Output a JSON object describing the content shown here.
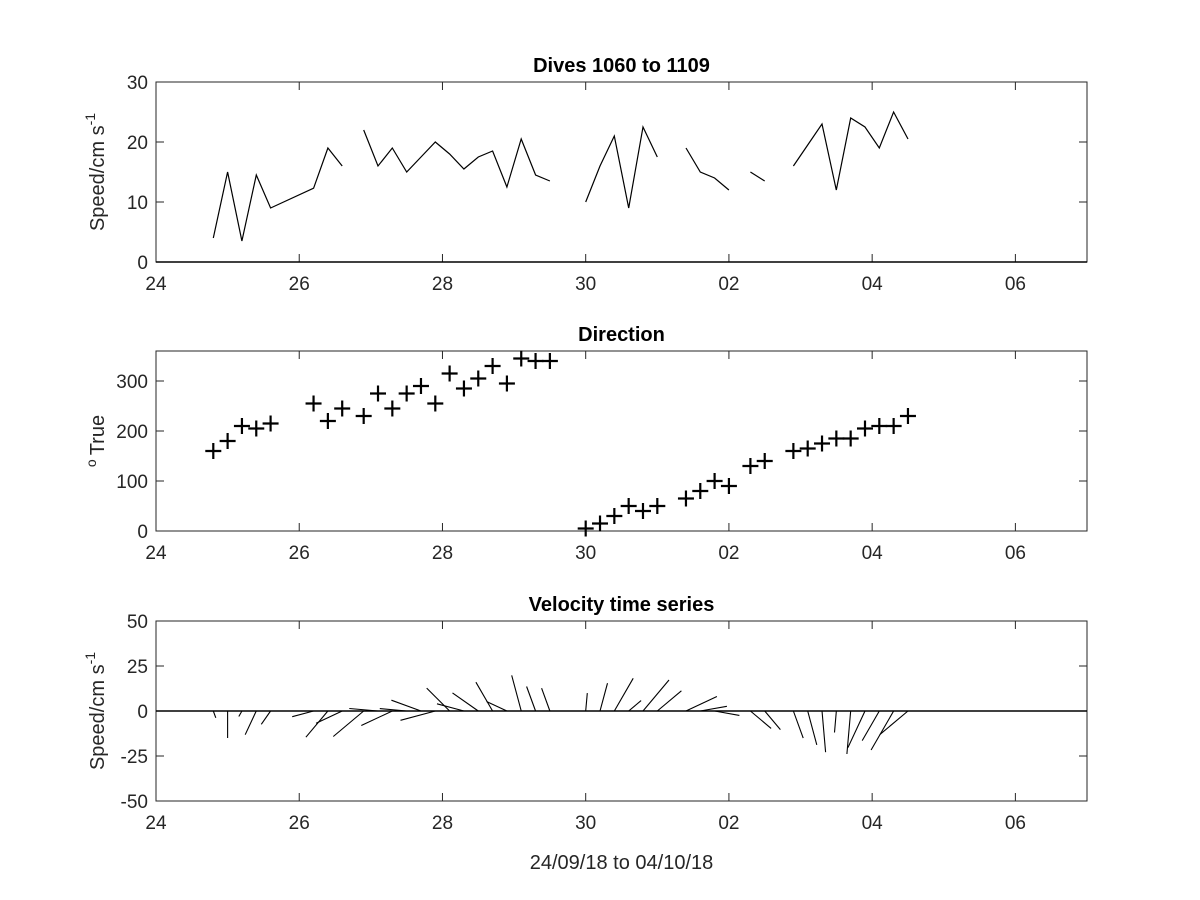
{
  "chart_data": [
    {
      "type": "line",
      "title": "Dives 1060 to 1109",
      "ylabel": "Speed/cm s",
      "ylabel_superscript": "-1",
      "xlabel": "",
      "xlim": [
        0,
        13
      ],
      "ylim": [
        0,
        30
      ],
      "xticks": [
        0,
        2,
        4,
        6,
        8,
        10,
        12
      ],
      "xticklabels": [
        "24",
        "26",
        "28",
        "30",
        "02",
        "04",
        "06"
      ],
      "yticks": [
        0,
        10,
        20,
        30
      ],
      "yticklabels": [
        "0",
        "10",
        "20",
        "30"
      ],
      "segments": [
        {
          "x": [
            0.8,
            1.0,
            1.2,
            1.4,
            1.6,
            2.2,
            2.4,
            2.6
          ],
          "y": [
            4.0,
            15.0,
            3.5,
            14.5,
            9.0,
            12.3,
            19.0,
            16.0
          ]
        },
        {
          "x": [
            2.9,
            3.1,
            3.3,
            3.5,
            3.7,
            3.9,
            4.1,
            4.3,
            4.5,
            4.7,
            4.9,
            5.1,
            5.3,
            5.5
          ],
          "y": [
            22.0,
            16.0,
            19.0,
            15.0,
            17.5,
            20.0,
            18.0,
            15.5,
            17.5,
            18.5,
            12.5,
            20.5,
            14.5,
            13.5
          ]
        },
        {
          "x": [
            6.0,
            6.2,
            6.4,
            6.6,
            6.8,
            7.0
          ],
          "y": [
            10.0,
            16.0,
            21.0,
            9.0,
            22.5,
            17.5
          ]
        },
        {
          "x": [
            7.4,
            7.6,
            7.8,
            8.0
          ],
          "y": [
            19.0,
            15.0,
            14.0,
            12.0
          ]
        },
        {
          "x": [
            8.3,
            8.5
          ],
          "y": [
            15.0,
            13.5
          ]
        },
        {
          "x": [
            8.9,
            9.1,
            9.3,
            9.5,
            9.7,
            9.9,
            10.1,
            10.3,
            10.5
          ],
          "y": [
            16.0,
            19.5,
            23.0,
            12.0,
            24.0,
            22.5,
            19.0,
            25.0,
            20.5
          ]
        }
      ]
    },
    {
      "type": "scatter",
      "title": "Direction",
      "ylabel": "True",
      "ylabel_prefix": "o",
      "xlabel": "",
      "xlim": [
        0,
        13
      ],
      "ylim": [
        0,
        360
      ],
      "xticks": [
        0,
        2,
        4,
        6,
        8,
        10,
        12
      ],
      "xticklabels": [
        "24",
        "26",
        "28",
        "30",
        "02",
        "04",
        "06"
      ],
      "yticks": [
        0,
        100,
        200,
        300
      ],
      "yticklabels": [
        "0",
        "100",
        "200",
        "300"
      ],
      "marker": "+",
      "x": [
        0.8,
        1.0,
        1.2,
        1.4,
        1.6,
        2.2,
        2.4,
        2.6,
        2.9,
        3.1,
        3.3,
        3.5,
        3.7,
        3.9,
        4.1,
        4.3,
        4.5,
        4.7,
        4.9,
        5.1,
        5.3,
        5.5,
        6.0,
        6.2,
        6.4,
        6.6,
        6.8,
        7.0,
        7.4,
        7.6,
        7.8,
        8.0,
        8.3,
        8.5,
        8.9,
        9.1,
        9.3,
        9.5,
        9.7,
        9.9,
        10.1,
        10.3,
        10.5
      ],
      "y": [
        160,
        180,
        210,
        205,
        215,
        255,
        220,
        245,
        230,
        275,
        245,
        275,
        290,
        255,
        315,
        285,
        305,
        330,
        295,
        345,
        340,
        340,
        5,
        15,
        30,
        50,
        40,
        50,
        65,
        80,
        100,
        90,
        130,
        140,
        160,
        165,
        175,
        185,
        185,
        205,
        210,
        210,
        230
      ]
    },
    {
      "type": "quiver",
      "title": "Velocity time series",
      "ylabel": "Speed/cm s",
      "ylabel_superscript": "-1",
      "xlabel": "24/09/18 to 04/10/18",
      "xlim": [
        0,
        13
      ],
      "ylim": [
        -50,
        50
      ],
      "xticks": [
        0,
        2,
        4,
        6,
        8,
        10,
        12
      ],
      "xticklabels": [
        "24",
        "26",
        "28",
        "30",
        "02",
        "04",
        "06"
      ],
      "yticks": [
        -50,
        -25,
        0,
        25,
        50
      ],
      "yticklabels": [
        "-50",
        "-25",
        "0",
        "25",
        "50"
      ],
      "vectors": {
        "x": [
          0.8,
          1.0,
          1.2,
          1.4,
          1.6,
          2.2,
          2.4,
          2.6,
          2.9,
          3.1,
          3.3,
          3.5,
          3.7,
          3.9,
          4.1,
          4.3,
          4.5,
          4.7,
          4.9,
          5.1,
          5.3,
          5.5,
          6.0,
          6.2,
          6.4,
          6.6,
          6.8,
          7.0,
          7.4,
          7.6,
          7.8,
          8.0,
          8.3,
          8.5,
          8.9,
          9.1,
          9.3,
          9.5,
          9.7,
          9.9,
          10.1,
          10.3,
          10.5
        ],
        "speed": [
          4.0,
          15.0,
          3.5,
          14.5,
          9.0,
          12.3,
          19.0,
          16.0,
          22.0,
          16.0,
          19.0,
          15.0,
          17.5,
          20.0,
          18.0,
          15.5,
          17.5,
          18.5,
          12.5,
          20.5,
          14.5,
          13.5,
          10.0,
          16.0,
          21.0,
          9.0,
          22.5,
          17.5,
          19.0,
          15.0,
          14.0,
          12.0,
          15.0,
          13.5,
          16.0,
          19.5,
          23.0,
          12.0,
          24.0,
          22.5,
          19.0,
          25.0,
          20.5
        ],
        "direction_deg": [
          160,
          180,
          210,
          205,
          215,
          255,
          220,
          245,
          230,
          275,
          245,
          275,
          290,
          255,
          315,
          285,
          305,
          330,
          295,
          345,
          340,
          340,
          5,
          15,
          30,
          50,
          40,
          50,
          65,
          80,
          100,
          90,
          130,
          140,
          160,
          165,
          175,
          185,
          185,
          205,
          210,
          210,
          230
        ]
      }
    }
  ]
}
